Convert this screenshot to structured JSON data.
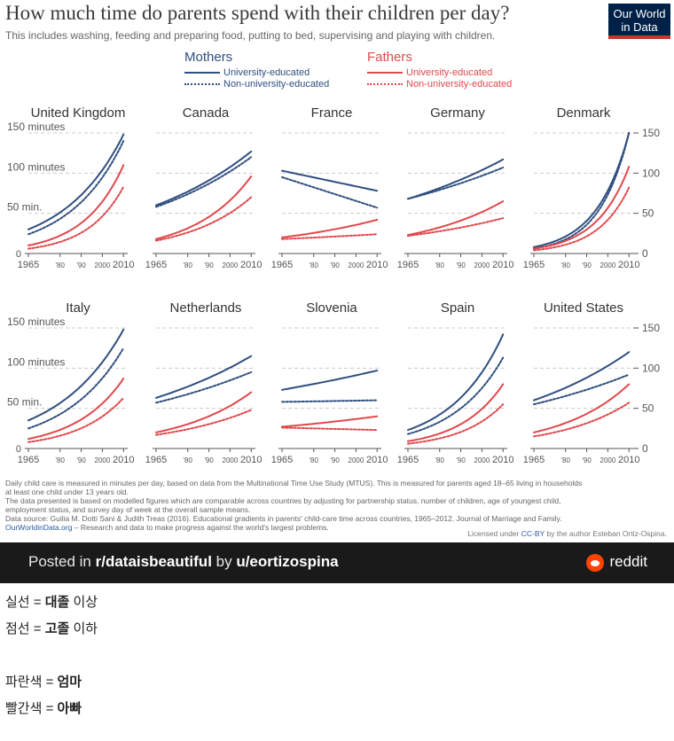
{
  "header": {
    "title": "How much time do parents spend with their children per day?",
    "subtitle": "This includes washing, feeding and preparing food, putting to bed, supervising and playing with children.",
    "logo_line1": "Our World",
    "logo_line2": "in Data"
  },
  "legend": {
    "mothers": "Mothers",
    "fathers": "Fathers",
    "mothers_uni": "University-educated",
    "mothers_nonuni": "Non-university-educated",
    "fathers_uni": "University-educated",
    "fathers_nonuni": "Non-university-educated"
  },
  "colors": {
    "mothers": "#2f4e7f",
    "fathers": "#e0484c",
    "grid": "#cccccc",
    "axis": "#555555"
  },
  "chart_data": {
    "type": "line",
    "panels_layout": "small-multiples 2 rows x 5 columns",
    "x_ticks": [
      "1965",
      "'80",
      "'90",
      "2000",
      "2010"
    ],
    "x_tick_values": [
      1965,
      1980,
      1990,
      2000,
      2010
    ],
    "xlim": [
      1965,
      2012
    ],
    "ylim": [
      0,
      150
    ],
    "y_ticks": [
      0,
      50,
      100,
      150
    ],
    "y_tick_labels_left": [
      "0",
      "50 min.",
      "100 minutes",
      "150 minutes"
    ],
    "y_tick_labels_right": [
      "0",
      "50",
      "100",
      "150"
    ],
    "line_styles": {
      "University-educated": "solid",
      "Non-university-educated": "dotted"
    },
    "panels": [
      {
        "country": "United Kingdom",
        "x": [
          1965,
          2010
        ],
        "mothers_uni": [
          30,
          148
        ],
        "mothers_nonuni": [
          24,
          140
        ],
        "fathers_uni": [
          10,
          110
        ],
        "fathers_nonuni": [
          6,
          83
        ]
      },
      {
        "country": "Canada",
        "x": [
          1965,
          2010
        ],
        "mothers_uni": [
          60,
          127
        ],
        "mothers_nonuni": [
          58,
          120
        ],
        "fathers_uni": [
          18,
          96
        ],
        "fathers_nonuni": [
          16,
          70
        ]
      },
      {
        "country": "France",
        "x": [
          1965,
          2010
        ],
        "mothers_uni": [
          103,
          78
        ],
        "mothers_nonuni": [
          95,
          57
        ],
        "fathers_uni": [
          20,
          42
        ],
        "fathers_nonuni": [
          18,
          24
        ]
      },
      {
        "country": "Germany",
        "x": [
          1965,
          2010
        ],
        "mothers_uni": [
          68,
          117
        ],
        "mothers_nonuni": [
          68,
          107
        ],
        "fathers_uni": [
          23,
          65
        ],
        "fathers_nonuni": [
          22,
          44
        ]
      },
      {
        "country": "Denmark",
        "x": [
          1965,
          2010
        ],
        "mothers_uni": [
          8,
          150
        ],
        "mothers_nonuni": [
          6,
          150
        ],
        "fathers_uni": [
          6,
          108
        ],
        "fathers_nonuni": [
          4,
          82
        ]
      },
      {
        "country": "Italy",
        "x": [
          1965,
          2010
        ],
        "mothers_uni": [
          35,
          148
        ],
        "mothers_nonuni": [
          25,
          125
        ],
        "fathers_uni": [
          12,
          87
        ],
        "fathers_nonuni": [
          8,
          63
        ]
      },
      {
        "country": "Netherlands",
        "x": [
          1965,
          2010
        ],
        "mothers_uni": [
          63,
          115
        ],
        "mothers_nonuni": [
          57,
          95
        ],
        "fathers_uni": [
          20,
          70
        ],
        "fathers_nonuni": [
          17,
          48
        ]
      },
      {
        "country": "Slovenia",
        "x": [
          1965,
          2010
        ],
        "mothers_uni": [
          73,
          97
        ],
        "mothers_nonuni": [
          58,
          60
        ],
        "fathers_uni": [
          27,
          40
        ],
        "fathers_nonuni": [
          26,
          23
        ]
      },
      {
        "country": "Spain",
        "x": [
          1965,
          2010
        ],
        "mothers_uni": [
          23,
          142
        ],
        "mothers_nonuni": [
          18,
          113
        ],
        "fathers_uni": [
          9,
          80
        ],
        "fathers_nonuni": [
          6,
          55
        ]
      },
      {
        "country": "United States",
        "x": [
          1965,
          2010
        ],
        "mothers_uni": [
          60,
          120
        ],
        "mothers_nonuni": [
          55,
          92
        ],
        "fathers_uni": [
          20,
          80
        ],
        "fathers_nonuni": [
          15,
          57
        ]
      }
    ]
  },
  "footnote": {
    "line1": "Daily child care is measured in minutes per day, based on data from the Multinational Time Use Study (MTUS). This is measured for parents aged 18–65 living in households",
    "line2": "at least one child under 13 years old.",
    "line3": "The data presented is based on modelled figures which are comparable across countries by adjusting for partnership status, number of children, age of youngest child,",
    "line4": "employment status, and survey day of week at the overall sample means.",
    "line5": "Data source: Guilia M. Dotti Sani & Judith Treas (2016). Educational gradients in parents' child-care time across countries, 1965–2012. Journal of Marriage and Family.",
    "site": "OurWorldinData.org",
    "site_tagline": " – Research and data to make progress against the world's largest problems.",
    "license_pre": "Licensed under ",
    "license": "CC-BY",
    "license_post": " by the author Esteban Ortiz-Ospina."
  },
  "reddit": {
    "posted_in": "Posted in ",
    "subreddit": "r/dataisbeautiful",
    "by": " by ",
    "user": "u/eortizospina",
    "brand": "reddit"
  },
  "captions": {
    "line1_pre": "실선 = ",
    "line1_bold": "대졸",
    "line1_post": " 이상",
    "line2_pre": "점선 = ",
    "line2_bold": "고졸",
    "line2_post": " 이하",
    "line3_pre": "파란색 = ",
    "line3_bold": "엄마",
    "line4_pre": "빨간색 = ",
    "line4_bold": "아빠"
  }
}
